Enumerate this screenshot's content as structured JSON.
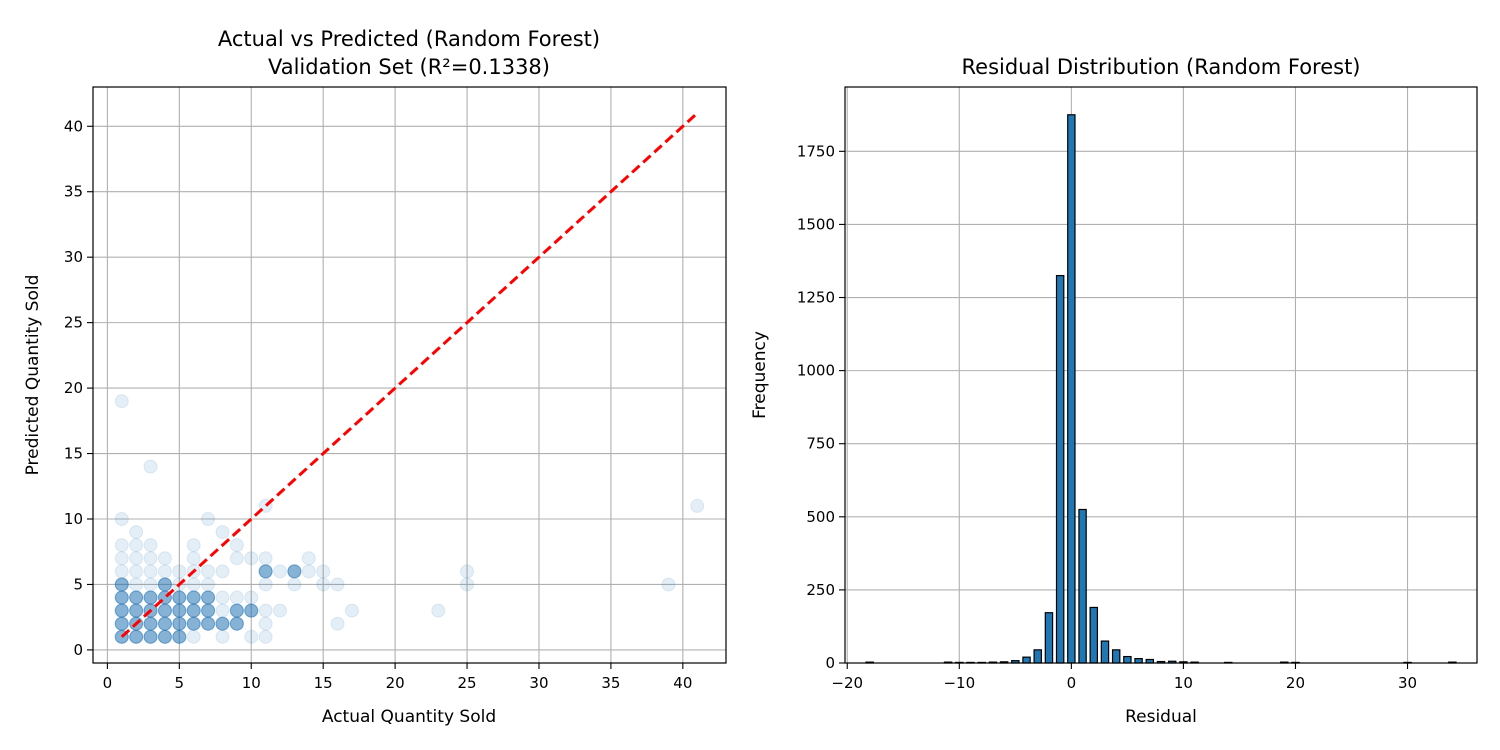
{
  "chart_data": [
    {
      "type": "scatter",
      "title": "Actual vs Predicted (Random Forest)",
      "subtitle": "Validation Set (R²=0.1338)",
      "xlabel": "Actual Quantity Sold",
      "ylabel": "Predicted Quantity Sold",
      "xlim": [
        -1,
        43
      ],
      "ylim": [
        -1,
        43
      ],
      "xticks": [
        0,
        5,
        10,
        15,
        20,
        25,
        30,
        35,
        40
      ],
      "yticks": [
        0,
        5,
        10,
        15,
        20,
        25,
        30,
        35,
        40
      ],
      "grid": true,
      "point_color": "#1f77b4",
      "point_alpha": 0.12,
      "reference_line": {
        "from": [
          1,
          1
        ],
        "to": [
          41,
          41
        ],
        "color": "#ff0000",
        "style": "dashed"
      },
      "points": [
        [
          1,
          1
        ],
        [
          1,
          2
        ],
        [
          1,
          3
        ],
        [
          1,
          4
        ],
        [
          1,
          5
        ],
        [
          1,
          6
        ],
        [
          1,
          7
        ],
        [
          1,
          8
        ],
        [
          1,
          10
        ],
        [
          1,
          19
        ],
        [
          2,
          1
        ],
        [
          2,
          2
        ],
        [
          2,
          3
        ],
        [
          2,
          4
        ],
        [
          2,
          5
        ],
        [
          2,
          6
        ],
        [
          2,
          7
        ],
        [
          2,
          8
        ],
        [
          2,
          9
        ],
        [
          3,
          1
        ],
        [
          3,
          2
        ],
        [
          3,
          3
        ],
        [
          3,
          4
        ],
        [
          3,
          5
        ],
        [
          3,
          6
        ],
        [
          3,
          7
        ],
        [
          3,
          8
        ],
        [
          3,
          14
        ],
        [
          4,
          1
        ],
        [
          4,
          2
        ],
        [
          4,
          3
        ],
        [
          4,
          4
        ],
        [
          4,
          5
        ],
        [
          4,
          6
        ],
        [
          4,
          7
        ],
        [
          5,
          1
        ],
        [
          5,
          2
        ],
        [
          5,
          3
        ],
        [
          5,
          4
        ],
        [
          5,
          5
        ],
        [
          5,
          6
        ],
        [
          6,
          1
        ],
        [
          6,
          2
        ],
        [
          6,
          3
        ],
        [
          6,
          4
        ],
        [
          6,
          5
        ],
        [
          6,
          6
        ],
        [
          6,
          7
        ],
        [
          6,
          8
        ],
        [
          7,
          2
        ],
        [
          7,
          3
        ],
        [
          7,
          4
        ],
        [
          7,
          5
        ],
        [
          7,
          6
        ],
        [
          7,
          10
        ],
        [
          8,
          1
        ],
        [
          8,
          2
        ],
        [
          8,
          3
        ],
        [
          8,
          4
        ],
        [
          8,
          6
        ],
        [
          8,
          9
        ],
        [
          9,
          2
        ],
        [
          9,
          3
        ],
        [
          9,
          4
        ],
        [
          9,
          7
        ],
        [
          9,
          8
        ],
        [
          10,
          1
        ],
        [
          10,
          3
        ],
        [
          10,
          4
        ],
        [
          10,
          7
        ],
        [
          11,
          1
        ],
        [
          11,
          2
        ],
        [
          11,
          3
        ],
        [
          11,
          5
        ],
        [
          11,
          6
        ],
        [
          11,
          7
        ],
        [
          11,
          11
        ],
        [
          12,
          3
        ],
        [
          12,
          6
        ],
        [
          13,
          5
        ],
        [
          13,
          6
        ],
        [
          14,
          6
        ],
        [
          14,
          7
        ],
        [
          15,
          5
        ],
        [
          15,
          6
        ],
        [
          16,
          2
        ],
        [
          16,
          5
        ],
        [
          17,
          3
        ],
        [
          23,
          3
        ],
        [
          25,
          5
        ],
        [
          25,
          6
        ],
        [
          39,
          5
        ],
        [
          41,
          11
        ]
      ],
      "dense_points": [
        [
          1,
          1
        ],
        [
          1,
          2
        ],
        [
          1,
          3
        ],
        [
          1,
          4
        ],
        [
          1,
          5
        ],
        [
          2,
          1
        ],
        [
          2,
          2
        ],
        [
          2,
          3
        ],
        [
          2,
          4
        ],
        [
          3,
          1
        ],
        [
          3,
          2
        ],
        [
          3,
          3
        ],
        [
          3,
          4
        ],
        [
          4,
          1
        ],
        [
          4,
          2
        ],
        [
          4,
          3
        ],
        [
          4,
          4
        ],
        [
          4,
          5
        ],
        [
          5,
          1
        ],
        [
          5,
          2
        ],
        [
          5,
          3
        ],
        [
          5,
          4
        ],
        [
          6,
          2
        ],
        [
          6,
          3
        ],
        [
          6,
          4
        ],
        [
          7,
          2
        ],
        [
          7,
          3
        ],
        [
          7,
          4
        ],
        [
          8,
          2
        ],
        [
          9,
          2
        ],
        [
          9,
          3
        ],
        [
          10,
          3
        ],
        [
          11,
          6
        ],
        [
          13,
          6
        ]
      ]
    },
    {
      "type": "bar",
      "subtype": "histogram",
      "title": "Residual Distribution (Random Forest)",
      "xlabel": "Residual",
      "ylabel": "Frequency",
      "xlim": [
        -20.2,
        36.2
      ],
      "ylim": [
        0,
        1970
      ],
      "xticks": [
        -20,
        -10,
        0,
        10,
        20,
        30
      ],
      "yticks": [
        0,
        250,
        500,
        750,
        1000,
        1250,
        1500,
        1750
      ],
      "grid": true,
      "bar_color": "#1f77b4",
      "edge_color": "#000000",
      "bin_width": 0.65,
      "bins": [
        [
          -18,
          3
        ],
        [
          -11,
          3
        ],
        [
          -10,
          2
        ],
        [
          -9,
          2
        ],
        [
          -8,
          2
        ],
        [
          -7,
          3
        ],
        [
          -6,
          4
        ],
        [
          -5,
          8
        ],
        [
          -4,
          20
        ],
        [
          -3,
          45
        ],
        [
          -2,
          172
        ],
        [
          -1,
          1325
        ],
        [
          0,
          1875
        ],
        [
          1,
          525
        ],
        [
          2,
          190
        ],
        [
          3,
          75
        ],
        [
          4,
          45
        ],
        [
          5,
          22
        ],
        [
          6,
          15
        ],
        [
          7,
          12
        ],
        [
          8,
          5
        ],
        [
          9,
          6
        ],
        [
          10,
          4
        ],
        [
          11,
          3
        ],
        [
          14,
          2
        ],
        [
          19,
          3
        ],
        [
          20,
          2
        ],
        [
          30,
          2
        ],
        [
          34,
          3
        ]
      ]
    }
  ]
}
